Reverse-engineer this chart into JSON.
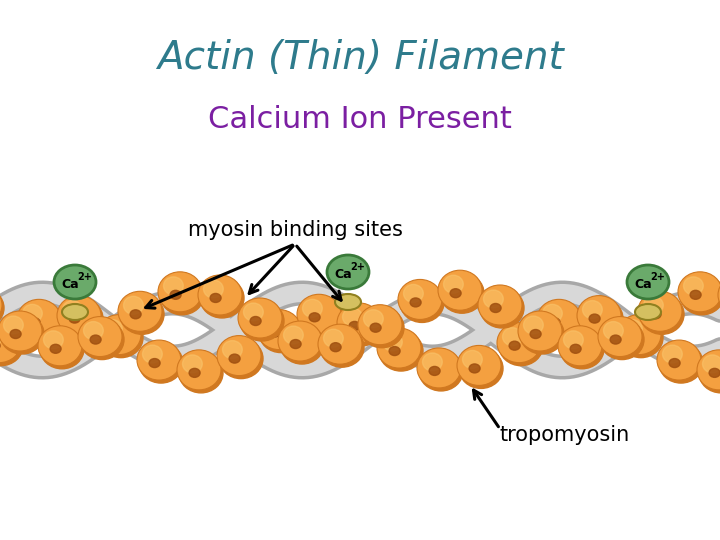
{
  "title": "Actin (Thin) Filament",
  "subtitle": "Calcium Ion Present",
  "title_color": "#2E7B8C",
  "subtitle_color": "#7B1FA2",
  "background_color": "#FFFFFF",
  "actin_color": "#F4A040",
  "actin_dark": "#D07820",
  "actin_highlight": "#FAC870",
  "actin_spot": "#A05010",
  "tropomyosin_color": "#D8D8D8",
  "tropomyosin_edge": "#A8A8A8",
  "ca_ion_color": "#6AAA6A",
  "ca_ion_edge": "#3A7A3A",
  "troponin_color": "#D4C060",
  "troponin_edge": "#908020",
  "label_myosin": "myosin binding sites",
  "label_tropomyosin": "tropomyosin",
  "figsize": [
    7.2,
    5.4
  ],
  "dpi": 100
}
